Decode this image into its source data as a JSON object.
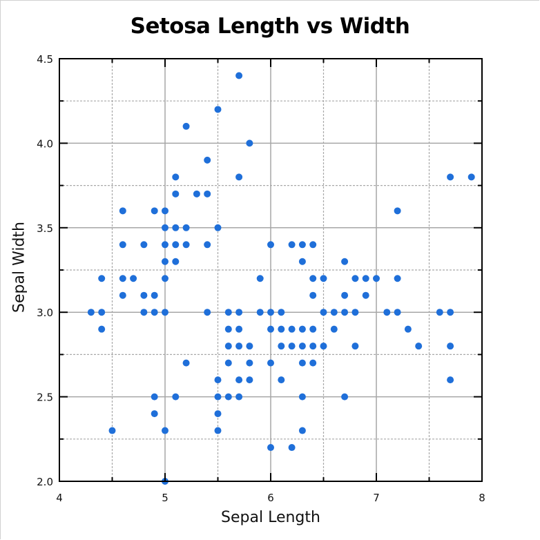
{
  "chart_data": {
    "type": "scatter",
    "title": "Setosa Length vs Width",
    "xlabel": "Sepal Length",
    "ylabel": "Sepal Width",
    "xlim": [
      4,
      8
    ],
    "ylim": [
      2.0,
      4.5
    ],
    "xticks": [
      "4",
      "5",
      "6",
      "7",
      "8"
    ],
    "yticks": [
      "2.0",
      "2.5",
      "3.0",
      "3.5",
      "4.0",
      "4.5"
    ],
    "grid": {
      "major": "solid",
      "minor": "dashed"
    },
    "legend": null,
    "marker_color": "#1f6fd9",
    "series": [
      {
        "name": "points",
        "points": [
          [
            5.7,
            4.4
          ],
          [
            5.5,
            4.2
          ],
          [
            5.2,
            4.1
          ],
          [
            5.8,
            4.0
          ],
          [
            5.4,
            3.9
          ],
          [
            5.1,
            3.8
          ],
          [
            5.7,
            3.8
          ],
          [
            7.7,
            3.8
          ],
          [
            7.9,
            3.8
          ],
          [
            5.1,
            3.7
          ],
          [
            5.3,
            3.7
          ],
          [
            5.4,
            3.7
          ],
          [
            4.6,
            3.6
          ],
          [
            4.9,
            3.6
          ],
          [
            5.0,
            3.6
          ],
          [
            7.2,
            3.6
          ],
          [
            5.0,
            3.5
          ],
          [
            5.1,
            3.5
          ],
          [
            5.2,
            3.5
          ],
          [
            5.5,
            3.5
          ],
          [
            4.6,
            3.4
          ],
          [
            4.8,
            3.4
          ],
          [
            5.0,
            3.4
          ],
          [
            5.1,
            3.4
          ],
          [
            5.2,
            3.4
          ],
          [
            5.4,
            3.4
          ],
          [
            6.0,
            3.4
          ],
          [
            6.2,
            3.4
          ],
          [
            6.3,
            3.4
          ],
          [
            6.4,
            3.4
          ],
          [
            5.0,
            3.3
          ],
          [
            5.1,
            3.3
          ],
          [
            6.3,
            3.3
          ],
          [
            6.7,
            3.3
          ],
          [
            4.4,
            3.2
          ],
          [
            4.6,
            3.2
          ],
          [
            4.7,
            3.2
          ],
          [
            5.0,
            3.2
          ],
          [
            5.9,
            3.2
          ],
          [
            6.4,
            3.2
          ],
          [
            6.5,
            3.2
          ],
          [
            6.8,
            3.2
          ],
          [
            6.9,
            3.2
          ],
          [
            7.0,
            3.2
          ],
          [
            7.2,
            3.2
          ],
          [
            4.6,
            3.1
          ],
          [
            4.8,
            3.1
          ],
          [
            4.9,
            3.1
          ],
          [
            6.4,
            3.1
          ],
          [
            6.7,
            3.1
          ],
          [
            6.9,
            3.1
          ],
          [
            4.3,
            3.0
          ],
          [
            4.4,
            3.0
          ],
          [
            4.8,
            3.0
          ],
          [
            4.9,
            3.0
          ],
          [
            5.0,
            3.0
          ],
          [
            5.4,
            3.0
          ],
          [
            5.6,
            3.0
          ],
          [
            5.7,
            3.0
          ],
          [
            5.9,
            3.0
          ],
          [
            6.0,
            3.0
          ],
          [
            6.1,
            3.0
          ],
          [
            6.5,
            3.0
          ],
          [
            6.6,
            3.0
          ],
          [
            6.7,
            3.0
          ],
          [
            6.8,
            3.0
          ],
          [
            7.1,
            3.0
          ],
          [
            7.2,
            3.0
          ],
          [
            7.6,
            3.0
          ],
          [
            7.7,
            3.0
          ],
          [
            4.4,
            2.9
          ],
          [
            5.6,
            2.9
          ],
          [
            5.7,
            2.9
          ],
          [
            6.0,
            2.9
          ],
          [
            6.1,
            2.9
          ],
          [
            6.2,
            2.9
          ],
          [
            6.3,
            2.9
          ],
          [
            6.4,
            2.9
          ],
          [
            6.6,
            2.9
          ],
          [
            7.3,
            2.9
          ],
          [
            5.6,
            2.8
          ],
          [
            5.7,
            2.8
          ],
          [
            5.8,
            2.8
          ],
          [
            6.1,
            2.8
          ],
          [
            6.2,
            2.8
          ],
          [
            6.3,
            2.8
          ],
          [
            6.4,
            2.8
          ],
          [
            6.5,
            2.8
          ],
          [
            6.8,
            2.8
          ],
          [
            7.4,
            2.8
          ],
          [
            7.7,
            2.8
          ],
          [
            5.2,
            2.7
          ],
          [
            5.6,
            2.7
          ],
          [
            5.8,
            2.7
          ],
          [
            6.0,
            2.7
          ],
          [
            6.3,
            2.7
          ],
          [
            6.4,
            2.7
          ],
          [
            5.5,
            2.6
          ],
          [
            5.7,
            2.6
          ],
          [
            5.8,
            2.6
          ],
          [
            6.1,
            2.6
          ],
          [
            7.7,
            2.6
          ],
          [
            4.9,
            2.5
          ],
          [
            5.1,
            2.5
          ],
          [
            5.5,
            2.5
          ],
          [
            5.6,
            2.5
          ],
          [
            5.7,
            2.5
          ],
          [
            6.3,
            2.5
          ],
          [
            6.7,
            2.5
          ],
          [
            4.9,
            2.4
          ],
          [
            5.5,
            2.4
          ],
          [
            4.5,
            2.3
          ],
          [
            5.0,
            2.3
          ],
          [
            5.5,
            2.3
          ],
          [
            6.3,
            2.3
          ],
          [
            6.0,
            2.2
          ],
          [
            6.2,
            2.2
          ],
          [
            5.0,
            2.0
          ]
        ]
      }
    ]
  }
}
